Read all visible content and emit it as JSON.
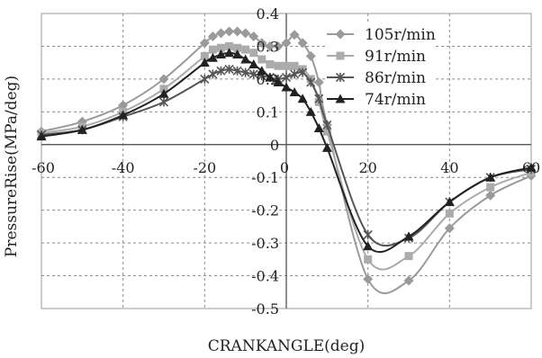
{
  "chart_data": {
    "type": "line",
    "xlabel": "CRANKANGLE(deg)",
    "ylabel": "PressureRise(MPa/deg)",
    "xlim": [
      -60,
      60
    ],
    "ylim": [
      -0.5,
      0.4
    ],
    "x_ticks": [
      -60,
      -40,
      -20,
      0,
      20,
      40,
      60
    ],
    "y_ticks": [
      -0.5,
      -0.4,
      -0.3,
      -0.2,
      -0.1,
      0,
      0.1,
      0.2,
      0.3,
      0.4
    ],
    "x_tick_labels": [
      "-60",
      "-40",
      "-20",
      "0",
      "20",
      "40",
      "60"
    ],
    "y_tick_labels": [
      "-0.5",
      "-0.4",
      "-0.3",
      "-0.2",
      "-0.1",
      "0",
      "0.1",
      "0.2",
      "0.3",
      "0.4"
    ],
    "grid": true,
    "legend_position": "top-right",
    "series": [
      {
        "name": "105r/min",
        "marker": "diamond",
        "color": "#9a9a9a",
        "points": [
          [
            -60,
            0.04
          ],
          [
            -50,
            0.07
          ],
          [
            -40,
            0.12
          ],
          [
            -30,
            0.2
          ],
          [
            -20,
            0.31
          ],
          [
            -18,
            0.33
          ],
          [
            -16,
            0.34
          ],
          [
            -14,
            0.345
          ],
          [
            -12,
            0.345
          ],
          [
            -10,
            0.34
          ],
          [
            -8,
            0.33
          ],
          [
            -6,
            0.31
          ],
          [
            -4,
            0.3
          ],
          [
            -2,
            0.3
          ],
          [
            0,
            0.31
          ],
          [
            2,
            0.335
          ],
          [
            4,
            0.31
          ],
          [
            6,
            0.27
          ],
          [
            8,
            0.19
          ],
          [
            10,
            0.06
          ],
          [
            20,
            -0.41
          ],
          [
            30,
            -0.415
          ],
          [
            40,
            -0.255
          ],
          [
            50,
            -0.155
          ],
          [
            60,
            -0.095
          ]
        ]
      },
      {
        "name": "91r/min",
        "marker": "square",
        "color": "#ababab",
        "points": [
          [
            -60,
            0.035
          ],
          [
            -50,
            0.055
          ],
          [
            -40,
            0.1
          ],
          [
            -30,
            0.17
          ],
          [
            -20,
            0.27
          ],
          [
            -18,
            0.29
          ],
          [
            -16,
            0.295
          ],
          [
            -14,
            0.3
          ],
          [
            -12,
            0.295
          ],
          [
            -10,
            0.29
          ],
          [
            -8,
            0.28
          ],
          [
            -6,
            0.26
          ],
          [
            -4,
            0.245
          ],
          [
            -2,
            0.24
          ],
          [
            0,
            0.24
          ],
          [
            2,
            0.24
          ],
          [
            4,
            0.23
          ],
          [
            6,
            0.2
          ],
          [
            8,
            0.13
          ],
          [
            10,
            0.04
          ],
          [
            20,
            -0.35
          ],
          [
            30,
            -0.34
          ],
          [
            40,
            -0.21
          ],
          [
            50,
            -0.13
          ],
          [
            60,
            -0.085
          ]
        ]
      },
      {
        "name": "86r/min",
        "marker": "star",
        "color": "#555555",
        "points": [
          [
            -60,
            0.03
          ],
          [
            -50,
            0.045
          ],
          [
            -40,
            0.085
          ],
          [
            -30,
            0.13
          ],
          [
            -20,
            0.2
          ],
          [
            -18,
            0.215
          ],
          [
            -16,
            0.225
          ],
          [
            -14,
            0.23
          ],
          [
            -12,
            0.225
          ],
          [
            -10,
            0.22
          ],
          [
            -8,
            0.215
          ],
          [
            -6,
            0.21
          ],
          [
            -4,
            0.205
          ],
          [
            -2,
            0.2
          ],
          [
            0,
            0.205
          ],
          [
            2,
            0.215
          ],
          [
            4,
            0.22
          ],
          [
            6,
            0.19
          ],
          [
            8,
            0.14
          ],
          [
            10,
            0.06
          ],
          [
            20,
            -0.275
          ],
          [
            30,
            -0.285
          ],
          [
            40,
            -0.175
          ],
          [
            50,
            -0.1
          ],
          [
            60,
            -0.075
          ]
        ]
      },
      {
        "name": "74r/min",
        "marker": "triangle",
        "color": "#222222",
        "points": [
          [
            -60,
            0.025
          ],
          [
            -50,
            0.045
          ],
          [
            -40,
            0.09
          ],
          [
            -30,
            0.155
          ],
          [
            -20,
            0.25
          ],
          [
            -18,
            0.265
          ],
          [
            -16,
            0.275
          ],
          [
            -14,
            0.28
          ],
          [
            -12,
            0.275
          ],
          [
            -10,
            0.26
          ],
          [
            -8,
            0.245
          ],
          [
            -6,
            0.225
          ],
          [
            -4,
            0.205
          ],
          [
            -2,
            0.19
          ],
          [
            0,
            0.175
          ],
          [
            2,
            0.16
          ],
          [
            4,
            0.14
          ],
          [
            6,
            0.1
          ],
          [
            8,
            0.05
          ],
          [
            10,
            -0.01
          ],
          [
            20,
            -0.31
          ],
          [
            30,
            -0.28
          ],
          [
            40,
            -0.175
          ],
          [
            50,
            -0.1
          ],
          [
            60,
            -0.07
          ]
        ]
      }
    ]
  }
}
